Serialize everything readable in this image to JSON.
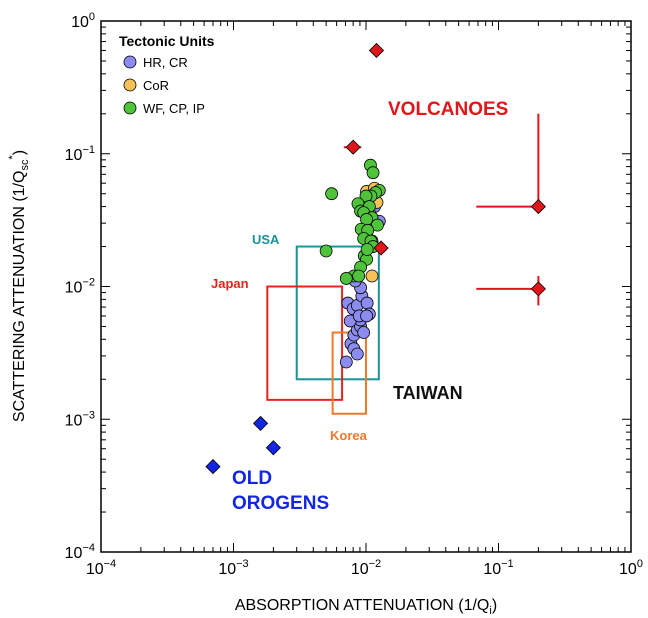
{
  "chart_data": {
    "type": "scatter",
    "xscale": "log",
    "yscale": "log",
    "xlim": [
      0.0001,
      1
    ],
    "ylim": [
      0.0001,
      1
    ],
    "xlabel": "ABSORPTION ATTENUATION (1/Q",
    "xlabel_sub": "i",
    "xlabel_end": ")",
    "ylabel": "SCATTERING ATTENUATION (1/Q",
    "ylabel_sub": "sc",
    "ylabel_sup": "*",
    "ylabel_end": ")",
    "x_ticks": [
      {
        "value": 0.0001,
        "base": "10",
        "exp": "−4"
      },
      {
        "value": 0.001,
        "base": "10",
        "exp": "−3"
      },
      {
        "value": 0.01,
        "base": "10",
        "exp": "−2"
      },
      {
        "value": 0.1,
        "base": "10",
        "exp": "−1"
      },
      {
        "value": 1,
        "base": "10",
        "exp": "0"
      }
    ],
    "y_ticks": [
      {
        "value": 0.0001,
        "base": "10",
        "exp": "−4"
      },
      {
        "value": 0.001,
        "base": "10",
        "exp": "−3"
      },
      {
        "value": 0.01,
        "base": "10",
        "exp": "−2"
      },
      {
        "value": 0.1,
        "base": "10",
        "exp": "−1"
      },
      {
        "value": 1,
        "base": "10",
        "exp": "0"
      }
    ],
    "legend": {
      "title": "Tectonic Units",
      "position": "top-left",
      "entries": [
        {
          "label": "HR, CR",
          "color": "#8c8cf0"
        },
        {
          "label": "CoR",
          "color": "#f5c25a"
        },
        {
          "label": "WF, CP, IP",
          "color": "#4fc43a"
        }
      ]
    },
    "series": [
      {
        "name": "HR, CR",
        "marker": "circle",
        "color": "#8c8cf0",
        "points": [
          [
            0.0071,
            0.0027
          ],
          [
            0.0077,
            0.0037
          ],
          [
            0.0081,
            0.0034
          ],
          [
            0.0086,
            0.0031
          ],
          [
            0.0081,
            0.0043
          ],
          [
            0.0086,
            0.0047
          ],
          [
            0.0091,
            0.005
          ],
          [
            0.0091,
            0.0056
          ],
          [
            0.0096,
            0.0045
          ],
          [
            0.0076,
            0.0055
          ],
          [
            0.0073,
            0.0075
          ],
          [
            0.008,
            0.0068
          ],
          [
            0.0086,
            0.0072
          ],
          [
            0.0093,
            0.0085
          ],
          [
            0.0102,
            0.0075
          ],
          [
            0.0106,
            0.0062
          ],
          [
            0.0091,
            0.0098
          ],
          [
            0.0083,
            0.011
          ],
          [
            0.0126,
            0.031
          ],
          [
            0.0116,
            0.04
          ],
          [
            0.0089,
            0.006
          ],
          [
            0.0101,
            0.006
          ]
        ]
      },
      {
        "name": "CoR",
        "marker": "circle",
        "color": "#f5c25a",
        "points": [
          [
            0.0101,
            0.052
          ],
          [
            0.0111,
            0.047
          ],
          [
            0.0116,
            0.055
          ],
          [
            0.0101,
            0.045
          ],
          [
            0.0121,
            0.043
          ],
          [
            0.0106,
            0.036
          ],
          [
            0.0111,
            0.022
          ],
          [
            0.0111,
            0.012
          ]
        ]
      },
      {
        "name": "WF, CP, IP",
        "marker": "circle",
        "color": "#4fc43a",
        "points": [
          [
            0.0108,
            0.082
          ],
          [
            0.0113,
            0.072
          ],
          [
            0.0126,
            0.053
          ],
          [
            0.0118,
            0.051
          ],
          [
            0.0109,
            0.048
          ],
          [
            0.01,
            0.048
          ],
          [
            0.0087,
            0.042
          ],
          [
            0.0091,
            0.037
          ],
          [
            0.0106,
            0.04
          ],
          [
            0.0096,
            0.036
          ],
          [
            0.0111,
            0.033
          ],
          [
            0.0101,
            0.032
          ],
          [
            0.0122,
            0.029
          ],
          [
            0.0092,
            0.027
          ],
          [
            0.0103,
            0.0265
          ],
          [
            0.0096,
            0.023
          ],
          [
            0.0109,
            0.022
          ],
          [
            0.0113,
            0.02
          ],
          [
            0.0097,
            0.017
          ],
          [
            0.0101,
            0.016
          ],
          [
            0.0091,
            0.014
          ],
          [
            0.0081,
            0.012
          ],
          [
            0.0071,
            0.0115
          ],
          [
            0.0055,
            0.05
          ],
          [
            0.005,
            0.0185
          ],
          [
            0.0102,
            0.019
          ],
          [
            0.0088,
            0.012
          ]
        ]
      },
      {
        "name": "VOLCANOES",
        "marker": "diamond",
        "color": "#e0161a",
        "points": [
          [
            0.012,
            0.6
          ],
          [
            0.008,
            0.112
          ],
          [
            0.013,
            0.0195
          ],
          [
            0.2,
            0.04
          ],
          [
            0.2,
            0.0096
          ]
        ],
        "error_bars": [
          {
            "x": 0.2,
            "y": 0.04,
            "xerr": [
              0.068,
              0.2
            ],
            "yerr": [
              0.04,
              0.2
            ]
          },
          {
            "x": 0.2,
            "y": 0.0096,
            "xerr": [
              0.068,
              0.2
            ],
            "yerr": [
              0.0072,
              0.012
            ]
          },
          {
            "x": 0.008,
            "y": 0.112,
            "xerr": [
              0.0068,
              0.0092
            ],
            "yerr": [
              0.112,
              0.112
            ]
          }
        ]
      },
      {
        "name": "OLD OROGENS",
        "marker": "diamond",
        "color": "#1326e6",
        "points": [
          [
            0.0007,
            0.00044
          ],
          [
            0.0016,
            0.00093
          ],
          [
            0.002,
            0.00061
          ]
        ]
      }
    ],
    "regions": [
      {
        "label": "USA",
        "color": "#17959a",
        "x": [
          0.003,
          0.0125
        ],
        "y": [
          0.002,
          0.02
        ]
      },
      {
        "label": "Japan",
        "color": "#e8231c",
        "x": [
          0.0018,
          0.0066
        ],
        "y": [
          0.0014,
          0.01
        ]
      },
      {
        "label": "Korea",
        "color": "#f0782d",
        "x": [
          0.0056,
          0.01
        ],
        "y": [
          0.0011,
          0.0045
        ]
      }
    ],
    "annotations": [
      {
        "text": "VOLCANOES",
        "color": "#e0161a"
      },
      {
        "text": "TAIWAN",
        "color": "#111111"
      },
      {
        "text": "OLD",
        "color": "#1326e6"
      },
      {
        "text": "OROGENS",
        "color": "#1326e6"
      }
    ]
  }
}
